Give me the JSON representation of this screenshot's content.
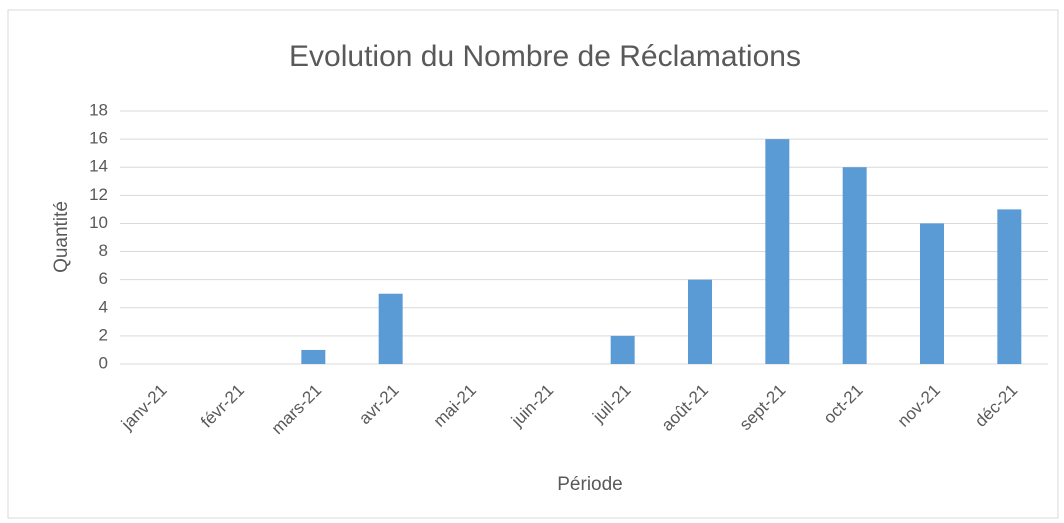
{
  "chart_data": {
    "type": "bar",
    "title": "Evolution du Nombre de Réclamations",
    "x_label": "Période",
    "y_label": "Quantité",
    "categories": [
      "janv-21",
      "févr-21",
      "mars-21",
      "avr-21",
      "mai-21",
      "juin-21",
      "juil-21",
      "août-21",
      "sept-21",
      "oct-21",
      "nov-21",
      "déc-21"
    ],
    "values": [
      0,
      0,
      1,
      5,
      0,
      0,
      2,
      6,
      16,
      14,
      10,
      11
    ],
    "color": "#5b9bd5",
    "ylim": [
      0,
      18
    ],
    "yticks": [
      0,
      2,
      4,
      6,
      8,
      10,
      12,
      14,
      16,
      18
    ],
    "grid": true
  }
}
